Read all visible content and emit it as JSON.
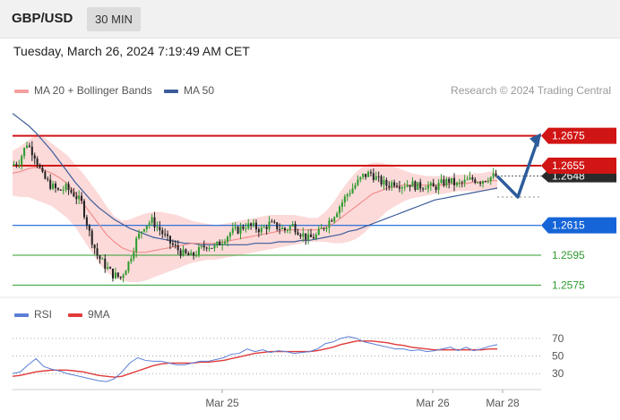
{
  "header": {
    "symbol": "GBP/USD",
    "timeframe": "30 MIN",
    "datetime": "Tuesday, March 26, 2024 7:19:49 AM CET"
  },
  "legend": {
    "ma20": "MA 20 + Bollinger Bands",
    "ma50": "MA 50",
    "copyright": "Research © 2024 Trading Central"
  },
  "rsi_legend": {
    "rsi": "RSI",
    "ma9": "9MA"
  },
  "colors": {
    "resistance": "#d11414",
    "support": "#1565d8",
    "target": "#2e9b2e",
    "candle_up": "#2e9b2e",
    "candle_down": "#222222",
    "bollinger": "#fbd3d3",
    "ma20": "#f28e8e",
    "ma50": "#3b5b99",
    "rsi": "#5b7fd6",
    "rsi_ma": "#e03a3a",
    "arrow": "#2d5c9b"
  },
  "chart_data": [
    {
      "type": "candlestick",
      "x_ticks": [
        "Mar 25",
        "Mar 26",
        "Mar 28"
      ],
      "ylim": [
        1.2568,
        1.27
      ],
      "levels": [
        {
          "value": 1.2675,
          "label": "1.2675",
          "kind": "resistance"
        },
        {
          "value": 1.2655,
          "label": "1.2655",
          "kind": "resistance"
        },
        {
          "value": 1.2615,
          "label": "1.2615",
          "kind": "support"
        },
        {
          "value": 1.2595,
          "label": "1.2595",
          "kind": "target"
        },
        {
          "value": 1.2575,
          "label": "1.2575",
          "kind": "target"
        }
      ],
      "current_price": {
        "value": 1.2648,
        "label": "1.2648"
      },
      "close_path": [
        1.2655,
        1.2658,
        1.267,
        1.2662,
        1.2648,
        1.2642,
        1.2638,
        1.264,
        1.2636,
        1.263,
        1.261,
        1.2595,
        1.2588,
        1.2582,
        1.258,
        1.259,
        1.2605,
        1.2615,
        1.2618,
        1.2612,
        1.2605,
        1.26,
        1.2596,
        1.2594,
        1.2598,
        1.2602,
        1.26,
        1.2605,
        1.261,
        1.2612,
        1.2615,
        1.2614,
        1.2612,
        1.2616,
        1.2614,
        1.2612,
        1.2615,
        1.261,
        1.2606,
        1.2608,
        1.2614,
        1.262,
        1.2628,
        1.2636,
        1.2642,
        1.2648,
        1.265,
        1.2645,
        1.2642,
        1.2644,
        1.2642,
        1.2643,
        1.2641,
        1.2642,
        1.264,
        1.2643,
        1.2645,
        1.2642,
        1.2644,
        1.2646,
        1.2645,
        1.2647,
        1.2648
      ],
      "ma20": [
        1.265,
        1.2651,
        1.2653,
        1.2654,
        1.2652,
        1.265,
        1.2647,
        1.2643,
        1.2637,
        1.263,
        1.2623,
        1.2616,
        1.2609,
        1.2604,
        1.26,
        1.2598,
        1.2597,
        1.2597,
        1.2598,
        1.2599,
        1.26,
        1.2601,
        1.2602,
        1.2603,
        1.2603,
        1.2603,
        1.2603,
        1.2604,
        1.2605,
        1.2606,
        1.2607,
        1.2608,
        1.2609,
        1.261,
        1.2611,
        1.2612,
        1.2612,
        1.2612,
        1.2612,
        1.2612,
        1.2614,
        1.2616,
        1.262,
        1.2624,
        1.2628,
        1.2632,
        1.2636,
        1.2638,
        1.264,
        1.2641,
        1.2642,
        1.2642,
        1.2642,
        1.2642,
        1.2642,
        1.2642,
        1.2643,
        1.2643,
        1.2643,
        1.2644,
        1.2644,
        1.2645,
        1.2645
      ],
      "bb_upper": [
        1.2665,
        1.2668,
        1.2672,
        1.2676,
        1.2674,
        1.267,
        1.2666,
        1.2662,
        1.2656,
        1.265,
        1.2643,
        1.2636,
        1.2628,
        1.2621,
        1.2618,
        1.2619,
        1.2621,
        1.2623,
        1.2624,
        1.2624,
        1.2623,
        1.2622,
        1.262,
        1.2618,
        1.2617,
        1.2616,
        1.2615,
        1.2616,
        1.2617,
        1.2618,
        1.2619,
        1.262,
        1.2621,
        1.2622,
        1.2622,
        1.2622,
        1.2622,
        1.2621,
        1.262,
        1.262,
        1.2624,
        1.263,
        1.2638,
        1.2645,
        1.2651,
        1.2655,
        1.2657,
        1.2657,
        1.2656,
        1.2654,
        1.2652,
        1.265,
        1.2649,
        1.2648,
        1.2648,
        1.2648,
        1.2648,
        1.2649,
        1.2649,
        1.265,
        1.265,
        1.2651,
        1.2651
      ],
      "bb_lower": [
        1.2635,
        1.2634,
        1.2634,
        1.2632,
        1.263,
        1.2628,
        1.2624,
        1.262,
        1.2614,
        1.2606,
        1.2598,
        1.259,
        1.2584,
        1.258,
        1.2578,
        1.2577,
        1.2577,
        1.2578,
        1.258,
        1.2582,
        1.2584,
        1.2586,
        1.2588,
        1.259,
        1.2591,
        1.2592,
        1.2592,
        1.2593,
        1.2594,
        1.2595,
        1.2596,
        1.2597,
        1.2598,
        1.2599,
        1.26,
        1.2601,
        1.2602,
        1.2603,
        1.2604,
        1.2604,
        1.2604,
        1.2603,
        1.2603,
        1.2604,
        1.2606,
        1.261,
        1.2615,
        1.262,
        1.2625,
        1.2628,
        1.2631,
        1.2633,
        1.2634,
        1.2635,
        1.2636,
        1.2636,
        1.2637,
        1.2638,
        1.2638,
        1.2638,
        1.2638,
        1.2639,
        1.2639
      ],
      "ma50": [
        1.269,
        1.2686,
        1.2682,
        1.2677,
        1.2671,
        1.2665,
        1.2658,
        1.2651,
        1.2644,
        1.2638,
        1.2632,
        1.2627,
        1.2623,
        1.2619,
        1.2616,
        1.2613,
        1.2611,
        1.2609,
        1.2607,
        1.2606,
        1.2605,
        1.2604,
        1.2603,
        1.2603,
        1.2602,
        1.2602,
        1.2602,
        1.2602,
        1.2602,
        1.2602,
        1.2602,
        1.2603,
        1.2603,
        1.2603,
        1.2604,
        1.2604,
        1.2604,
        1.2605,
        1.2605,
        1.2606,
        1.2607,
        1.2608,
        1.2609,
        1.2611,
        1.2612,
        1.2614,
        1.2616,
        1.2618,
        1.262,
        1.2622,
        1.2624,
        1.2626,
        1.2628,
        1.263,
        1.2632,
        1.2633,
        1.2634,
        1.2635,
        1.2636,
        1.2637,
        1.2638,
        1.2639,
        1.264
      ],
      "forecast_path": [
        1.2648,
        1.2634,
        1.2672
      ]
    },
    {
      "type": "line",
      "ylim": [
        17,
        80
      ],
      "y_ticks": [
        70,
        50,
        30
      ],
      "levels": [
        70,
        50,
        30
      ],
      "rsi": [
        30,
        32,
        40,
        47,
        38,
        35,
        33,
        30,
        28,
        26,
        24,
        22,
        21,
        24,
        32,
        42,
        48,
        45,
        44,
        44,
        42,
        40,
        40,
        42,
        44,
        44,
        46,
        48,
        52,
        53,
        58,
        55,
        57,
        54,
        56,
        55,
        53,
        54,
        55,
        58,
        64,
        66,
        70,
        72,
        70,
        66,
        64,
        62,
        60,
        58,
        58,
        56,
        57,
        55,
        56,
        58,
        60,
        56,
        60,
        56,
        58,
        61,
        63
      ],
      "ma9": [
        27,
        28,
        30,
        32,
        33,
        34,
        34,
        34,
        33,
        32,
        30,
        28,
        27,
        26,
        27,
        30,
        33,
        36,
        39,
        41,
        42,
        42,
        42,
        42,
        43,
        43,
        44,
        45,
        47,
        49,
        51,
        53,
        54,
        55,
        55,
        55,
        55,
        55,
        55,
        56,
        58,
        60,
        63,
        65,
        67,
        67,
        67,
        66,
        65,
        63,
        62,
        60,
        59,
        58,
        57,
        57,
        57,
        57,
        57,
        57,
        57,
        58,
        58
      ]
    }
  ]
}
